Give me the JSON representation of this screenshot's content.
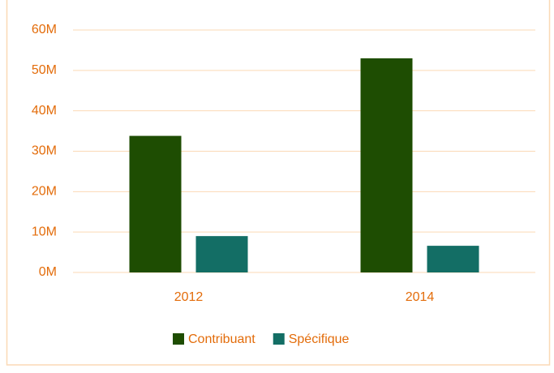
{
  "chart_data": {
    "type": "bar",
    "categories": [
      "2012",
      "2014"
    ],
    "series": [
      {
        "name": "Contribuant",
        "color": "#1e4d02",
        "values": [
          33.8,
          53
        ]
      },
      {
        "name": "Spécifique",
        "color": "#136e65",
        "values": [
          9,
          6.6
        ]
      }
    ],
    "ylim": [
      0,
      60
    ],
    "yticks": [
      {
        "value": 0,
        "label": "0M"
      },
      {
        "value": 10,
        "label": "10M"
      },
      {
        "value": 20,
        "label": "20M"
      },
      {
        "value": 30,
        "label": "30M"
      },
      {
        "value": 40,
        "label": "40M"
      },
      {
        "value": 50,
        "label": "50M"
      },
      {
        "value": 60,
        "label": "60M"
      }
    ],
    "grid": true,
    "legend": "bottom"
  }
}
